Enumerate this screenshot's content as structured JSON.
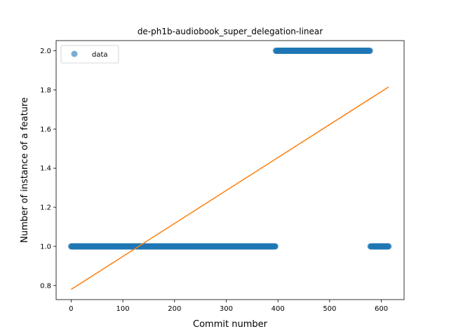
{
  "chart_data": {
    "type": "scatter",
    "title": "de-ph1b-audiobook_super_delegation-linear",
    "xlabel": "Commit number",
    "ylabel": "Number of instance of a feature",
    "xlim": [
      -29,
      644
    ],
    "ylim": [
      0.728,
      2.052
    ],
    "xticks": [
      0,
      100,
      200,
      300,
      400,
      500,
      600
    ],
    "yticks": [
      0.8,
      1.0,
      1.2,
      1.4,
      1.6,
      1.8,
      2.0
    ],
    "ytick_labels": [
      "0.8",
      "1.0",
      "1.2",
      "1.4",
      "1.6",
      "1.8",
      "2.0"
    ],
    "legend": {
      "position": "upper-left",
      "entries": [
        "data"
      ]
    },
    "series": [
      {
        "name": "data",
        "kind": "points",
        "color": "#1f77b4",
        "segments": [
          {
            "x_start": 0,
            "x_end": 395,
            "y": 1.0
          },
          {
            "x_start": 396,
            "x_end": 578,
            "y": 2.0
          },
          {
            "x_start": 579,
            "x_end": 614,
            "y": 1.0
          }
        ]
      },
      {
        "kind": "line",
        "color": "#ff7f0e",
        "x": [
          0,
          614
        ],
        "y": [
          0.78,
          1.815
        ]
      }
    ]
  }
}
